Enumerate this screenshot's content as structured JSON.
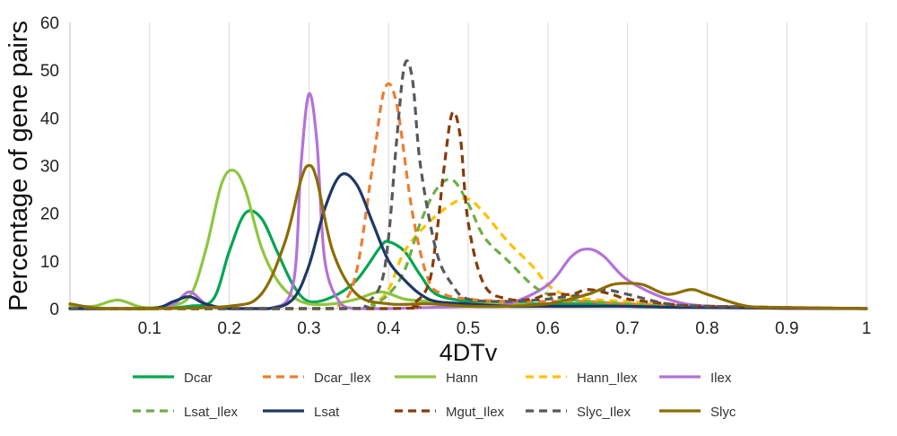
{
  "chart_data": {
    "type": "line",
    "title": "",
    "xlabel": "4DTv",
    "ylabel": "Percentage of gene pairs",
    "xlim": [
      0,
      1
    ],
    "ylim": [
      0,
      60
    ],
    "x_ticks": [
      "0.1",
      "0.2",
      "0.3",
      "0.4",
      "0.5",
      "0.6",
      "0.7",
      "0.8",
      "0.9",
      "1"
    ],
    "y_ticks": [
      "0",
      "10",
      "20",
      "30",
      "40",
      "50",
      "60"
    ],
    "grid": "vertical",
    "legend_position": "bottom",
    "series": [
      {
        "name": "Dcar",
        "color": "#00a651",
        "dash": false,
        "x": [
          0,
          0.1,
          0.15,
          0.18,
          0.2,
          0.22,
          0.24,
          0.26,
          0.28,
          0.3,
          0.33,
          0.36,
          0.39,
          0.4,
          0.42,
          0.44,
          0.46,
          0.5,
          0.55,
          0.6,
          0.65,
          0.7,
          0.75,
          0.8,
          1
        ],
        "y": [
          0,
          0,
          0.5,
          2,
          12,
          20,
          19,
          12,
          5,
          1.5,
          2.5,
          6,
          13,
          14,
          12,
          7,
          3,
          1.5,
          1,
          1,
          1,
          1,
          0.5,
          0.3,
          0
        ]
      },
      {
        "name": "Dcar_Ilex",
        "color": "#ed7d31",
        "dash": true,
        "x": [
          0,
          0.3,
          0.34,
          0.36,
          0.38,
          0.395,
          0.41,
          0.43,
          0.45,
          0.47,
          0.5,
          0.55,
          0.6,
          0.65,
          0.7,
          0.8,
          1
        ],
        "y": [
          0,
          0,
          1,
          8,
          30,
          46,
          43,
          20,
          6,
          3,
          2,
          1.5,
          1.5,
          1.5,
          1,
          0.5,
          0
        ]
      },
      {
        "name": "Hann",
        "color": "#8dc63f",
        "dash": false,
        "x": [
          0,
          0.03,
          0.06,
          0.09,
          0.12,
          0.15,
          0.17,
          0.19,
          0.205,
          0.22,
          0.24,
          0.26,
          0.28,
          0.3,
          0.33,
          0.36,
          0.39,
          0.42,
          0.45,
          0.5,
          0.55,
          0.6,
          0.7,
          0.8,
          1
        ],
        "y": [
          0.5,
          0.5,
          1.8,
          0.3,
          0.5,
          2.5,
          12,
          26,
          29,
          25,
          13,
          6,
          2.5,
          1,
          1,
          2,
          3.5,
          2,
          1.5,
          1,
          1,
          0.5,
          0.5,
          0.3,
          0
        ]
      },
      {
        "name": "Hann_Ilex",
        "color": "#ffc000",
        "dash": true,
        "x": [
          0,
          0.35,
          0.38,
          0.4,
          0.42,
          0.45,
          0.48,
          0.5,
          0.52,
          0.55,
          0.58,
          0.6,
          0.62,
          0.65,
          0.7,
          0.75,
          0.8,
          1
        ],
        "y": [
          0,
          0,
          1,
          4,
          12,
          18,
          22,
          23,
          20,
          14,
          9,
          5,
          3,
          2,
          1.5,
          1,
          0.5,
          0
        ]
      },
      {
        "name": "Ilex",
        "color": "#b373d9",
        "dash": false,
        "x": [
          0,
          0.1,
          0.13,
          0.15,
          0.17,
          0.19,
          0.25,
          0.28,
          0.29,
          0.3,
          0.31,
          0.32,
          0.34,
          0.36,
          0.4,
          0.5,
          0.55,
          0.6,
          0.63,
          0.65,
          0.67,
          0.7,
          0.75,
          0.8,
          0.9,
          1
        ],
        "y": [
          0,
          0,
          1,
          3.5,
          1,
          0,
          0,
          5,
          30,
          45,
          35,
          10,
          1,
          0,
          0,
          0.5,
          1,
          5,
          11,
          12.5,
          11,
          6,
          2,
          0.5,
          0,
          0
        ]
      },
      {
        "name": "Lsat_Ilex",
        "color": "#70ad47",
        "dash": true,
        "x": [
          0,
          0.35,
          0.38,
          0.4,
          0.42,
          0.44,
          0.46,
          0.48,
          0.5,
          0.52,
          0.55,
          0.58,
          0.6,
          0.62,
          0.65,
          0.7,
          0.75,
          0.8,
          1
        ],
        "y": [
          0,
          0,
          1,
          3,
          8,
          18,
          25,
          27,
          22,
          15,
          10,
          5,
          3,
          2,
          1.5,
          1,
          0.5,
          0.3,
          0
        ]
      },
      {
        "name": "Lsat",
        "color": "#1f3864",
        "dash": false,
        "x": [
          0,
          0.1,
          0.13,
          0.15,
          0.17,
          0.2,
          0.25,
          0.28,
          0.3,
          0.32,
          0.34,
          0.36,
          0.38,
          0.4,
          0.42,
          0.44,
          0.46,
          0.5,
          0.55,
          0.6,
          0.65,
          0.7,
          0.75,
          0.8,
          1
        ],
        "y": [
          0,
          0,
          1.5,
          2.5,
          1,
          0,
          0,
          2,
          9,
          21,
          28,
          26,
          18,
          10,
          6,
          3,
          1.5,
          1,
          0.5,
          0.5,
          0.5,
          0.5,
          0.3,
          0.2,
          0
        ]
      },
      {
        "name": "Mgut_Ilex",
        "color": "#843c0c",
        "dash": true,
        "x": [
          0,
          0.4,
          0.43,
          0.45,
          0.46,
          0.47,
          0.48,
          0.49,
          0.5,
          0.52,
          0.55,
          0.58,
          0.6,
          0.63,
          0.65,
          0.68,
          0.7,
          0.75,
          0.8,
          1
        ],
        "y": [
          0,
          0,
          1,
          5,
          15,
          30,
          41,
          36,
          18,
          5,
          2,
          2,
          3,
          3,
          4,
          3,
          2,
          1,
          0.5,
          0
        ]
      },
      {
        "name": "Slyc_Ilex",
        "color": "#595959",
        "dash": true,
        "x": [
          0,
          0.34,
          0.37,
          0.39,
          0.4,
          0.41,
          0.42,
          0.43,
          0.44,
          0.46,
          0.48,
          0.5,
          0.55,
          0.6,
          0.62,
          0.65,
          0.67,
          0.7,
          0.75,
          0.8,
          1
        ],
        "y": [
          0,
          0,
          1,
          5,
          15,
          35,
          51,
          48,
          30,
          12,
          5,
          2,
          1.5,
          2,
          2.5,
          3,
          4,
          3,
          1,
          0.5,
          0
        ]
      },
      {
        "name": "Slyc",
        "color": "#8b6d00",
        "dash": false,
        "x": [
          0,
          0.04,
          0.1,
          0.2,
          0.24,
          0.27,
          0.29,
          0.3,
          0.31,
          0.33,
          0.36,
          0.4,
          0.45,
          0.5,
          0.55,
          0.6,
          0.65,
          0.68,
          0.7,
          0.72,
          0.75,
          0.78,
          0.8,
          0.85,
          0.9,
          1
        ],
        "y": [
          1,
          0,
          0,
          0.5,
          3,
          14,
          27,
          30,
          27,
          12,
          3,
          1,
          1,
          0.5,
          0.5,
          1,
          3,
          5,
          5.3,
          5,
          3,
          4,
          3,
          0.5,
          0.2,
          0
        ]
      }
    ]
  }
}
